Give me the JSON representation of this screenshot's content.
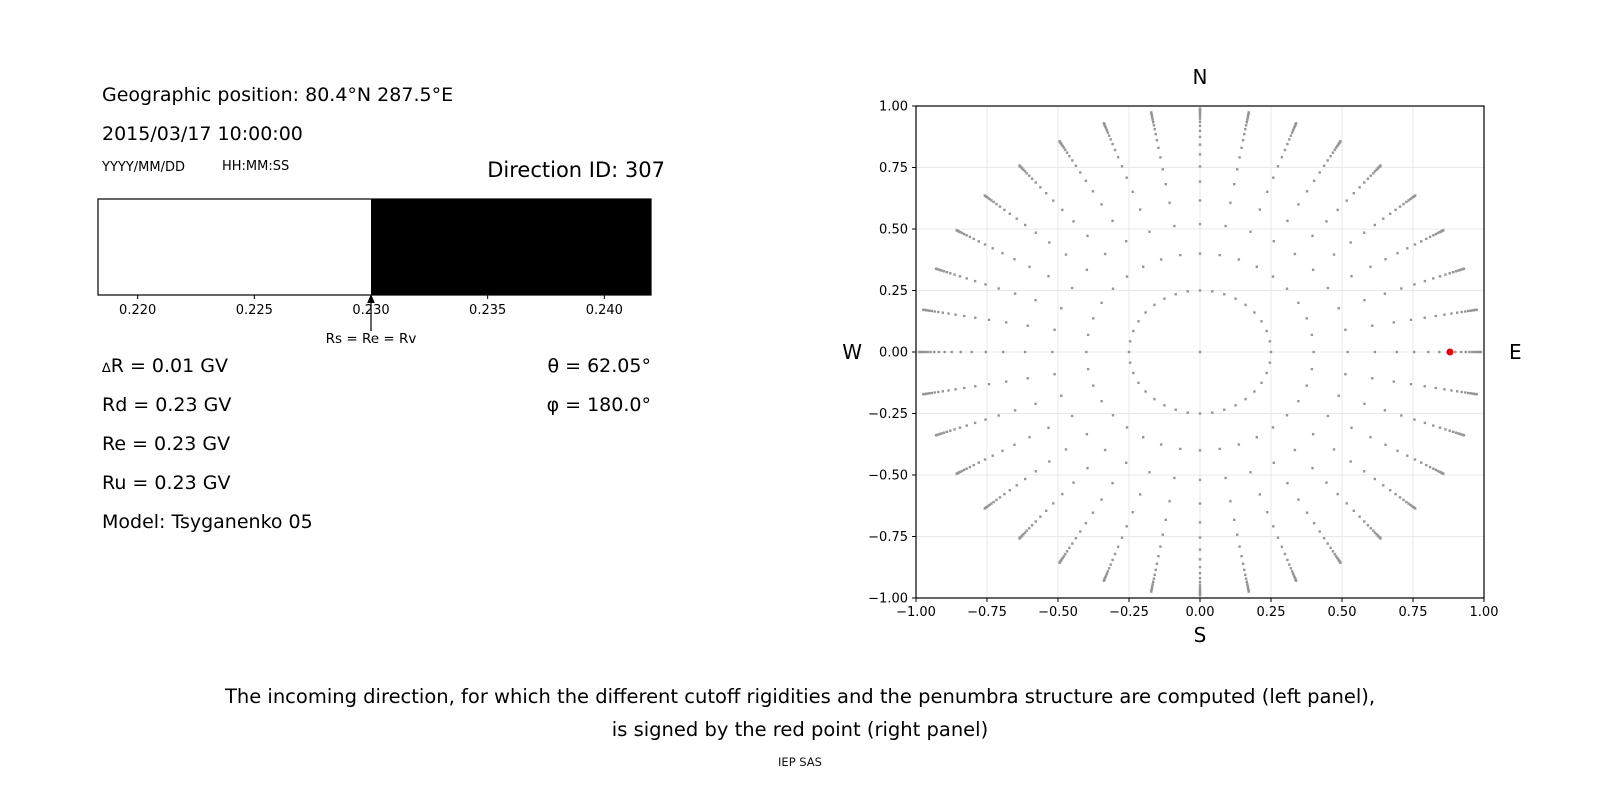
{
  "left_panel": {
    "geo_position": "Geographic position: 80.4°N 287.5°E",
    "datetime": "2015/03/17 10:00:00",
    "date_format_hint": "YYYY/MM/DD",
    "time_format_hint": "HH:MM:SS",
    "direction_id": "Direction ID: 307",
    "delta_symbol": "∆",
    "delta_rest": "R = 0.01 GV",
    "rd": "Rd = 0.23 GV",
    "re": "Re = 0.23 GV",
    "ru": "Ru = 0.23 GV",
    "theta": "θ = 62.05°",
    "phi": "φ = 180.0°",
    "model": "Model: Tsyganenko 05",
    "arrow_label": "Rs = Re = Rv"
  },
  "caption": {
    "line1": "The incoming direction, for which the different cutoff rigidities and the penumbra structure are computed (left panel),",
    "line2": "is signed by the red point (right panel)"
  },
  "credit": "IEP SAS",
  "chart_data": [
    {
      "type": "bar",
      "name": "penumbra-strip",
      "xlim": [
        0.2183,
        0.242
      ],
      "xticks": [
        0.22,
        0.225,
        0.23,
        0.235,
        0.24
      ],
      "tick_labels": [
        "0.220",
        "0.225",
        "0.230",
        "0.235",
        "0.240"
      ],
      "regions": [
        {
          "from": 0.2183,
          "to": 0.23,
          "color": "#ffffff",
          "state": "allowed"
        },
        {
          "from": 0.23,
          "to": 0.242,
          "color": "#000000",
          "state": "forbidden"
        }
      ],
      "annotation": {
        "text": "Rs = Re = Rv",
        "x": 0.23
      },
      "frame_color": "#000000"
    },
    {
      "type": "scatter",
      "name": "incoming-direction-map",
      "xlim": [
        -1.0,
        1.0
      ],
      "ylim": [
        -1.0,
        1.0
      ],
      "ticks": [
        -1.0,
        -0.75,
        -0.5,
        -0.25,
        0.0,
        0.25,
        0.5,
        0.75,
        1.0
      ],
      "tick_labels": [
        "−1.00",
        "−0.75",
        "−0.50",
        "−0.25",
        "0.00",
        "0.25",
        "0.50",
        "0.75",
        "1.00"
      ],
      "compass": {
        "top": "N",
        "bottom": "S",
        "left": "W",
        "right": "E"
      },
      "grid": true,
      "grid_color": "#e9e9e9",
      "dot_color": "#969696",
      "center_point": [
        0.0,
        0.0
      ],
      "spokes": {
        "count": 36,
        "azimuth_start_deg": 0,
        "azimuth_step_deg": 10,
        "radii": [
          0.25,
          0.4,
          0.52,
          0.616,
          0.6928,
          0.7542,
          0.8034,
          0.8427,
          0.8742,
          0.8993,
          0.9195,
          0.9356,
          0.9485,
          0.9588,
          0.967,
          0.9736,
          0.9789,
          0.9831,
          0.9865,
          0.9892
        ]
      },
      "red_point": {
        "x": 0.88,
        "y": 0.0,
        "color": "#e8000b"
      }
    }
  ]
}
